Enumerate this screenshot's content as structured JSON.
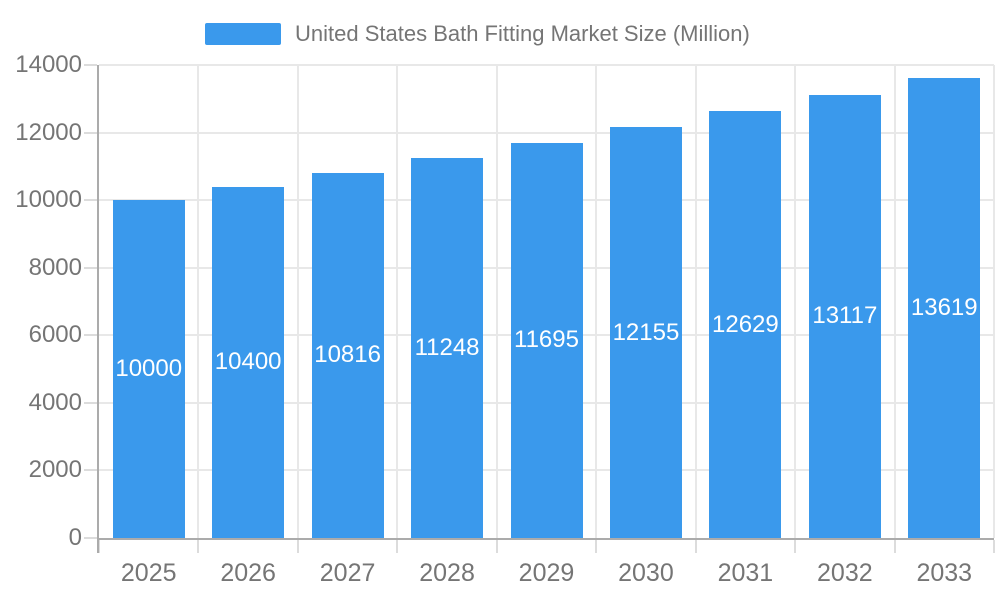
{
  "chart_data": {
    "type": "bar",
    "title": "United States Bath Fitting Market Size (Million)",
    "legend": [
      "United States Bath Fitting Market Size (Million)"
    ],
    "legend_position": "top",
    "categories": [
      "2025",
      "2026",
      "2027",
      "2028",
      "2029",
      "2030",
      "2031",
      "2032",
      "2033"
    ],
    "values": [
      10000,
      10400,
      10816,
      11248,
      11695,
      12155,
      12629,
      13117,
      13619
    ],
    "bar_value_labels": [
      "10000",
      "10400",
      "10816",
      "11248",
      "11695",
      "12155",
      "12629",
      "13117",
      "13619"
    ],
    "xlabel": "",
    "ylabel": "",
    "ylim": [
      0,
      14000
    ],
    "yticks": [
      0,
      2000,
      4000,
      6000,
      8000,
      10000,
      12000,
      14000
    ],
    "grid": true,
    "bar_labels_position": "inside-center"
  },
  "colors": {
    "bar": "#3A99EC",
    "bar_label_text": "#FFFFFF",
    "axis_text": "#757575",
    "legend_text": "#757575",
    "gridline": "#E8E8E8",
    "axis_line": "#ABABAB",
    "tick": "#DCDCDC",
    "background": "#FFFFFF"
  }
}
